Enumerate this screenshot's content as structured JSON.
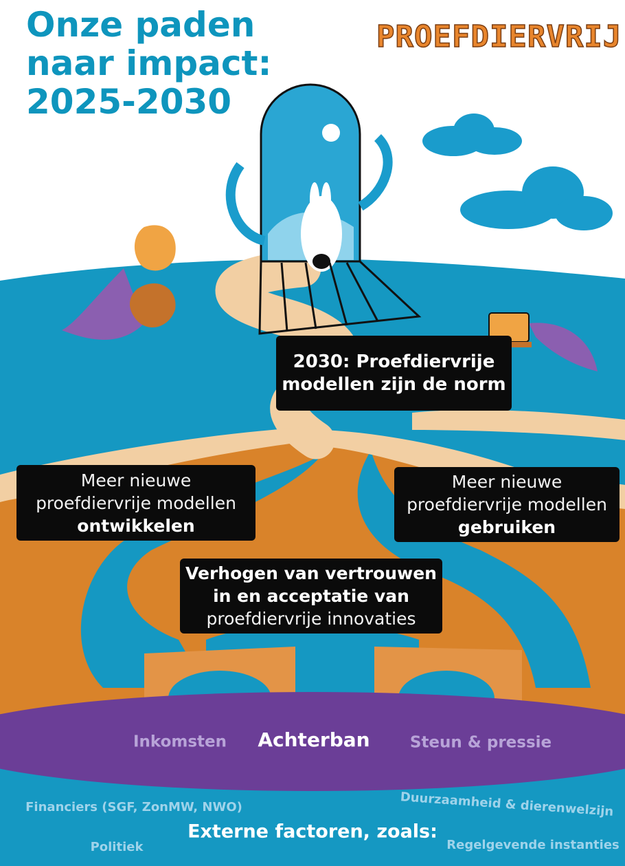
{
  "header": {
    "title": "Onze paden naar impact: 2025-2030",
    "logo": "PROEFDIERVRIJ"
  },
  "goal": {
    "text": "2030: Proefdiervrije modellen zijn de norm"
  },
  "paths": [
    {
      "text": "Meer nieuwe proefdiervrije modellen",
      "emphasis": "ontwikkelen"
    },
    {
      "text": "Meer nieuwe proefdiervrije modellen",
      "emphasis": "gebruiken"
    }
  ],
  "foundation": {
    "emphasis": "Verhogen van vertrouwen in en acceptatie van",
    "text": "proefdiervrije innovaties"
  },
  "base": {
    "left": "Inkomsten",
    "center": "Achterban",
    "right": "Steun & pressie"
  },
  "external": {
    "heading": "Externe factoren, zoals:",
    "items": [
      "Financiers (SGF, ZonMW, NWO)",
      "Duurzaamheid & dierenwelzijn",
      "Politiek",
      "Regelgevende instanties"
    ]
  }
}
